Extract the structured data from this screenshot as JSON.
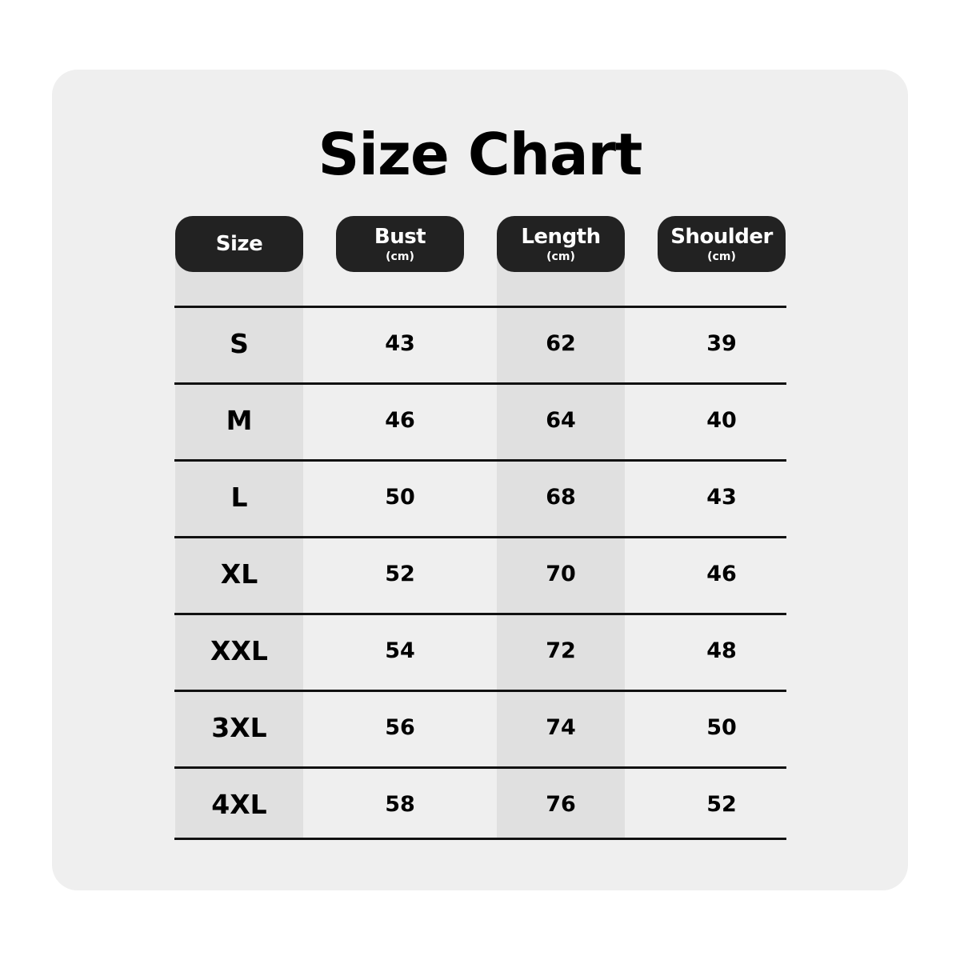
{
  "title": "Size Chart",
  "columns": [
    {
      "label": "Size",
      "unit": ""
    },
    {
      "label": "Bust",
      "unit": "(cm)"
    },
    {
      "label": "Length",
      "unit": "(cm)"
    },
    {
      "label": "Shoulder",
      "unit": "(cm)"
    }
  ],
  "rows": [
    [
      "S",
      "43",
      "62",
      "39"
    ],
    [
      "M",
      "46",
      "64",
      "40"
    ],
    [
      "L",
      "50",
      "68",
      "43"
    ],
    [
      "XL",
      "52",
      "70",
      "46"
    ],
    [
      "XXL",
      "54",
      "72",
      "48"
    ],
    [
      "3XL",
      "56",
      "74",
      "50"
    ],
    [
      "4XL",
      "58",
      "76",
      "52"
    ]
  ],
  "colors": {
    "card": "#efefef",
    "header": "#222222",
    "shaded_column": "#e0e0e0"
  }
}
